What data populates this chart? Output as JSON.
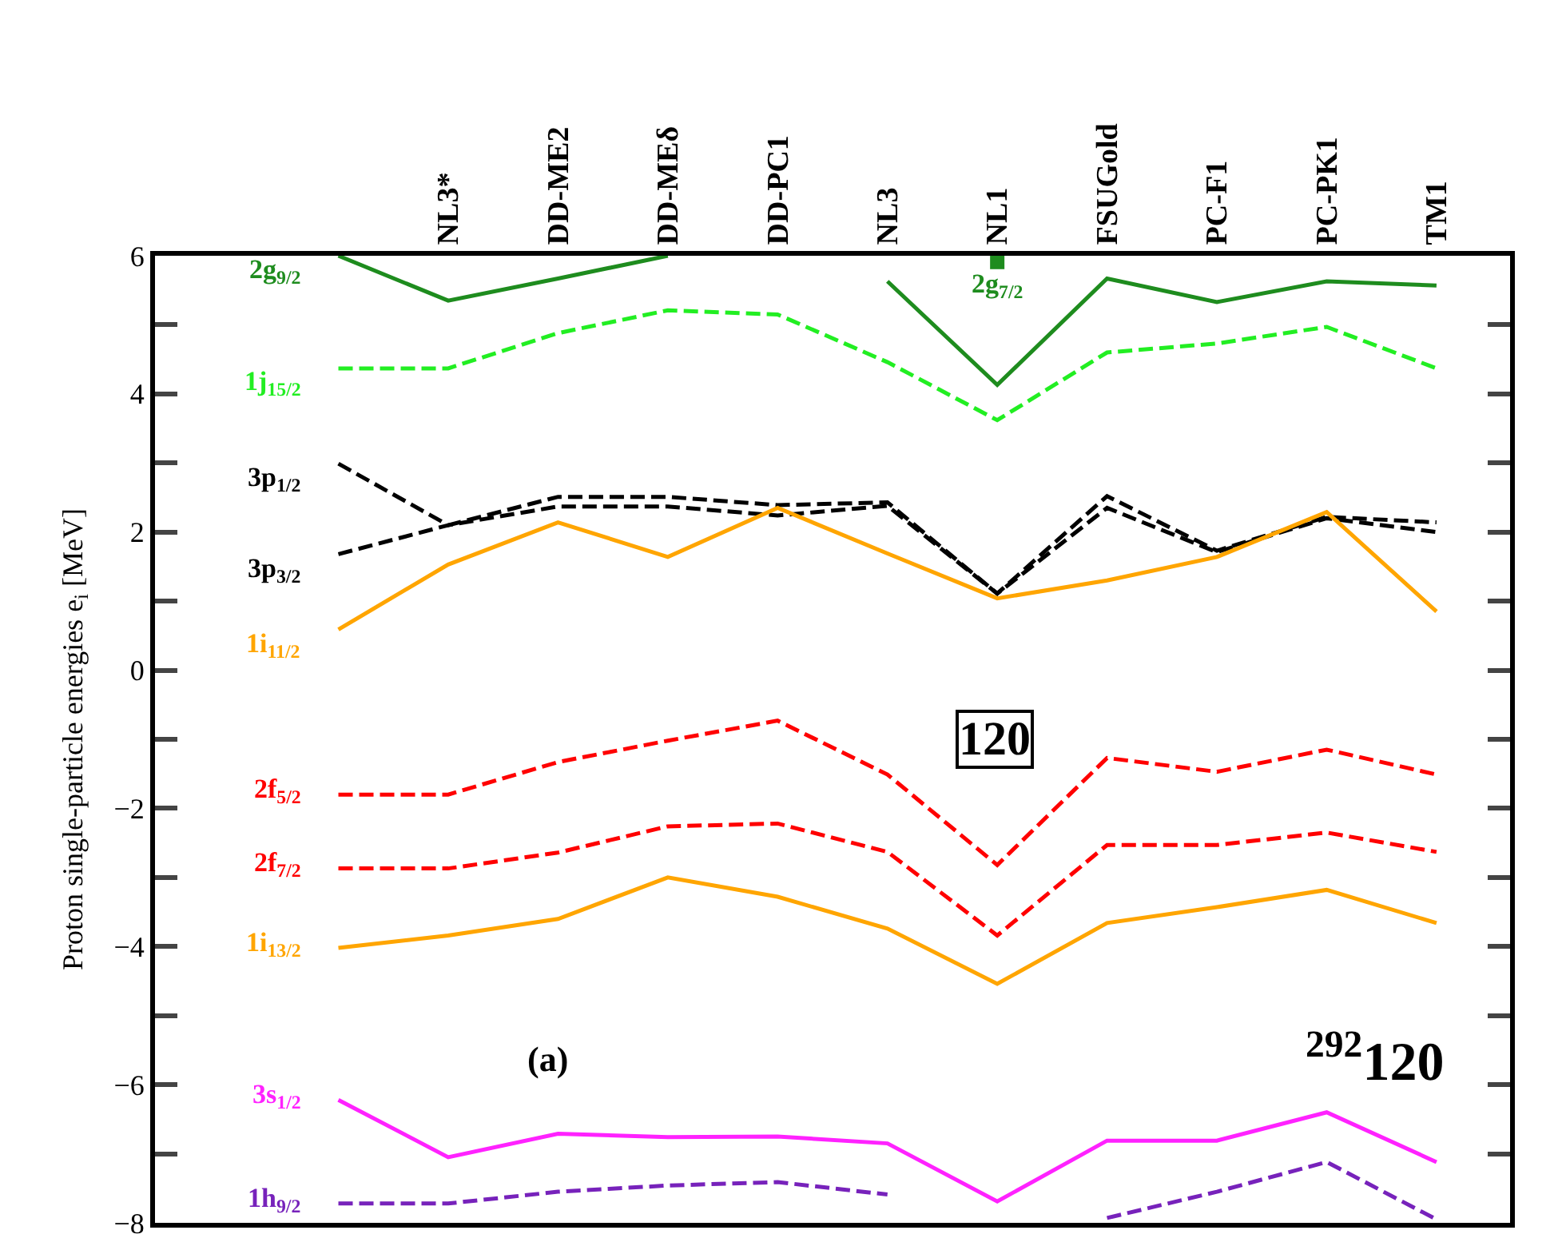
{
  "chart_data": {
    "type": "line",
    "ylabel": "Proton single-particle energies e$_{i}$ [MeV]",
    "categories": [
      null,
      "NL3*",
      "DD-ME2",
      "DD-MEδ",
      "DD-PC1",
      "NL3",
      "NL1",
      "FSUGold",
      "PC-F1",
      "PC-PK1",
      "TM1"
    ],
    "ylim": [
      -8,
      6
    ],
    "yticks": [
      -8,
      {
        "value": -7,
        "label": null
      },
      -6,
      {
        "value": -5,
        "label": null
      },
      -4,
      {
        "value": -3,
        "label": null
      },
      -2,
      {
        "value": -1,
        "label": null
      },
      0,
      {
        "value": 1,
        "label": null
      },
      2,
      {
        "value": 3,
        "label": null
      },
      4,
      {
        "value": 5,
        "label": null
      },
      6
    ],
    "series": [
      {
        "name": "2g$_{9/2}$",
        "color": "#1e8c1e",
        "line_style": "solid",
        "values": [
          6.0,
          5.35,
          5.67,
          6.0,
          null,
          5.63,
          4.13,
          5.67,
          5.33,
          5.63,
          5.57
        ]
      },
      {
        "name": "2g$_{7/2}$",
        "color": "#1e8c1e",
        "line_style": "solid",
        "marker": "square",
        "values": [
          null,
          null,
          null,
          null,
          null,
          null,
          5.91,
          null,
          null,
          null,
          null
        ]
      },
      {
        "name": "1j$_{15/2}$",
        "color": "#22ee22",
        "line_style": "dashed",
        "values": [
          4.37,
          4.37,
          4.88,
          5.21,
          5.15,
          4.46,
          3.62,
          4.6,
          4.73,
          4.97,
          4.37
        ]
      },
      {
        "name": "3p$_{1/2}$",
        "color": "#000000",
        "line_style": "dashed",
        "values": [
          2.99,
          2.1,
          2.51,
          2.51,
          2.39,
          2.43,
          1.11,
          2.52,
          1.73,
          2.22,
          2.14
        ]
      },
      {
        "name": "3p$_{3/2}$",
        "color": "#000000",
        "line_style": "dashed",
        "values": [
          1.68,
          2.1,
          2.37,
          2.37,
          2.24,
          2.38,
          1.11,
          2.35,
          1.71,
          2.2,
          2.0
        ]
      },
      {
        "name": "1i$_{11/2}$",
        "color": "#ffa500",
        "line_style": "solid",
        "values": [
          0.59,
          1.53,
          2.14,
          1.64,
          2.35,
          1.69,
          1.04,
          1.3,
          1.64,
          2.29,
          0.85
        ]
      },
      {
        "name": "2f$_{5/2}$",
        "color": "#ff0000",
        "line_style": "dashed",
        "values": [
          -1.8,
          -1.8,
          -1.33,
          -1.02,
          -0.73,
          -1.51,
          -2.82,
          -1.27,
          -1.47,
          -1.15,
          -1.51
        ]
      },
      {
        "name": "2f$_{7/2}$",
        "color": "#ff0000",
        "line_style": "dashed",
        "values": [
          -2.87,
          -2.87,
          -2.64,
          -2.26,
          -2.22,
          -2.63,
          -3.84,
          -2.53,
          -2.53,
          -2.35,
          -2.63
        ]
      },
      {
        "name": "1i$_{13/2}$",
        "color": "#ffa500",
        "line_style": "solid",
        "values": [
          -4.02,
          -3.84,
          -3.6,
          -3.0,
          -3.28,
          -3.74,
          -4.54,
          -3.66,
          -3.43,
          -3.18,
          -3.66
        ]
      },
      {
        "name": "3s$_{1/2}$",
        "color": "#ff22ff",
        "line_style": "solid",
        "values": [
          -6.22,
          -7.05,
          -6.71,
          -6.76,
          -6.75,
          -6.85,
          -7.69,
          -6.81,
          -6.81,
          -6.4,
          -7.12
        ]
      },
      {
        "name": "1h$_{9/2}$",
        "color": "#7722bb",
        "line_style": "dashed",
        "values": [
          -7.72,
          -7.72,
          -7.55,
          -7.46,
          -7.41,
          -7.59,
          null,
          -7.93,
          -7.55,
          -7.12,
          -7.95
        ]
      }
    ],
    "annotations": [
      "(a)",
      "120",
      "$^{292}$120"
    ]
  }
}
